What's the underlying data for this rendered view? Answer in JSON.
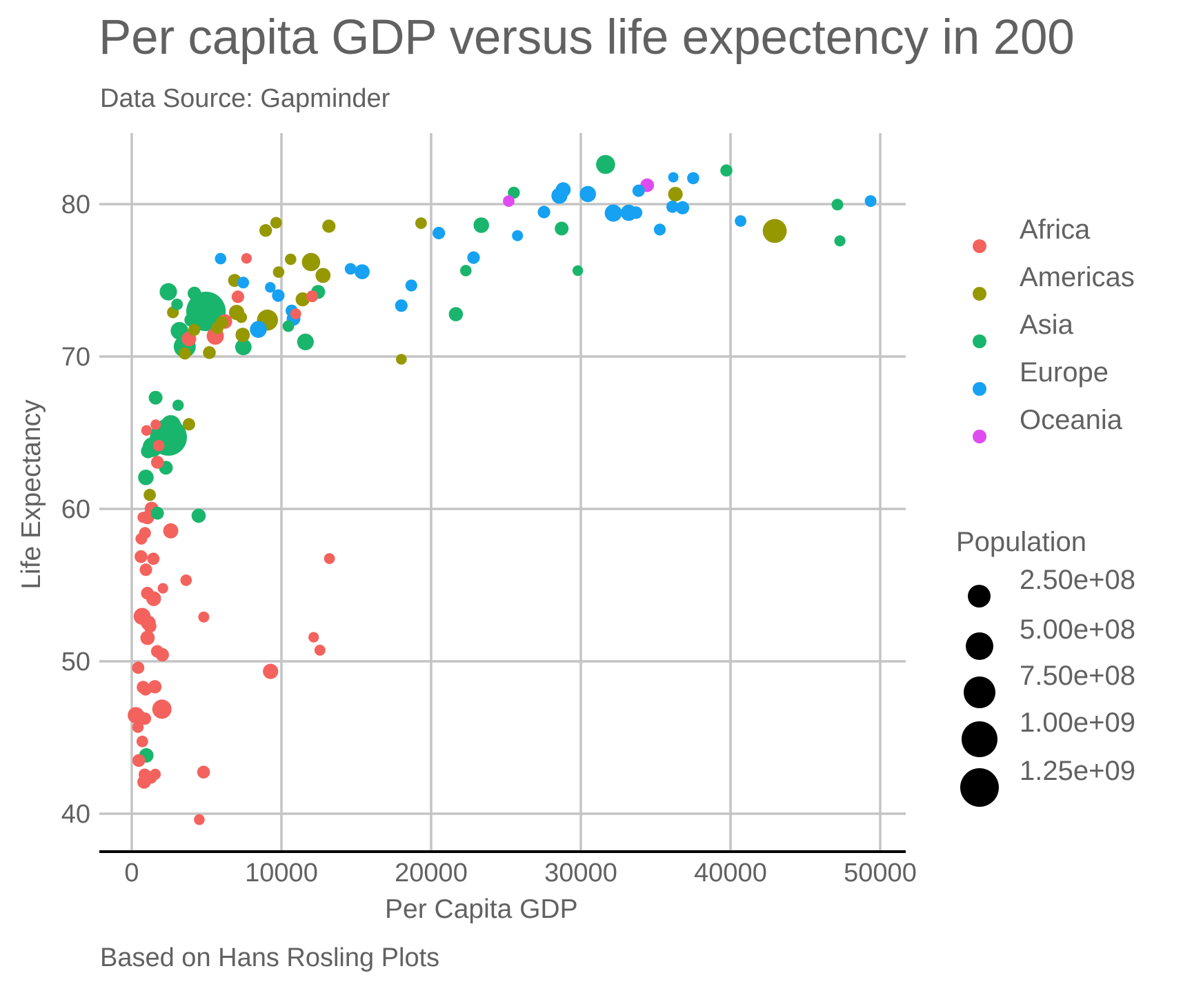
{
  "chart_data": {
    "type": "scatter",
    "title": "Per capita GDP versus life expectency in 200",
    "subtitle": "Data Source: Gapminder",
    "caption": "Based on Hans Rosling Plots",
    "xlabel": "Per Capita GDP",
    "ylabel": "Life Expectancy",
    "xlim": [
      -2300,
      52300
    ],
    "ylim": [
      37.4,
      84.7
    ],
    "x_ticks": [
      0,
      10000,
      20000,
      30000,
      40000,
      50000
    ],
    "x_tick_labels": [
      "0",
      "10000",
      "20000",
      "30000",
      "40000",
      "50000"
    ],
    "y_ticks": [
      40,
      50,
      60,
      70,
      80
    ],
    "y_tick_labels": [
      "40",
      "50",
      "60",
      "70",
      "80"
    ],
    "grid": true,
    "legend_position": "right",
    "color_legend": {
      "title": "",
      "entries": [
        {
          "label": "Africa",
          "color": "#F4625D"
        },
        {
          "label": "Americas",
          "color": "#969800"
        },
        {
          "label": "Asia",
          "color": "#1AB56C"
        },
        {
          "label": "Europe",
          "color": "#16A1F2"
        },
        {
          "label": "Oceania",
          "color": "#DE4CF0"
        }
      ]
    },
    "size_legend": {
      "title": "Population",
      "entries": [
        {
          "label": "2.50e+08",
          "value": 250000000
        },
        {
          "label": "5.00e+08",
          "value": 500000000
        },
        {
          "label": "7.50e+08",
          "value": 750000000
        },
        {
          "label": "1.00e+09",
          "value": 1000000000
        },
        {
          "label": "1.25e+09",
          "value": 1250000000
        }
      ]
    },
    "fields": [
      "gdpPercap",
      "lifeExp",
      "pop",
      "continent"
    ],
    "points": [
      [
        974.58,
        43.83,
        31889923,
        "Asia"
      ],
      [
        5937.03,
        76.42,
        3600523,
        "Europe"
      ],
      [
        6223.37,
        72.3,
        33333216,
        "Africa"
      ],
      [
        4797.23,
        42.73,
        12420476,
        "Africa"
      ],
      [
        12779.38,
        75.32,
        40301927,
        "Americas"
      ],
      [
        34435.37,
        81.24,
        20434176,
        "Oceania"
      ],
      [
        36126.49,
        79.83,
        8199783,
        "Europe"
      ],
      [
        29796.05,
        75.64,
        708573,
        "Asia"
      ],
      [
        1391.25,
        64.06,
        150448339,
        "Asia"
      ],
      [
        33692.61,
        79.44,
        10392226,
        "Europe"
      ],
      [
        1441.28,
        56.73,
        8078314,
        "Africa"
      ],
      [
        3822.14,
        65.55,
        9119152,
        "Americas"
      ],
      [
        7446.3,
        74.85,
        4552198,
        "Europe"
      ],
      [
        12569.85,
        50.73,
        1639131,
        "Africa"
      ],
      [
        9065.8,
        72.39,
        190010647,
        "Americas"
      ],
      [
        10680.79,
        73.01,
        7322858,
        "Europe"
      ],
      [
        1217.03,
        52.3,
        14326203,
        "Africa"
      ],
      [
        430.07,
        49.58,
        8390505,
        "Africa"
      ],
      [
        1713.78,
        59.72,
        14131858,
        "Asia"
      ],
      [
        2042.1,
        50.43,
        17696293,
        "Africa"
      ],
      [
        36319.24,
        80.65,
        33390141,
        "Americas"
      ],
      [
        706.02,
        44.74,
        4369038,
        "Africa"
      ],
      [
        1704.06,
        50.65,
        10238807,
        "Africa"
      ],
      [
        13171.64,
        78.55,
        16284741,
        "Americas"
      ],
      [
        4959.11,
        72.96,
        1318683096,
        "Asia"
      ],
      [
        7006.58,
        72.89,
        44227550,
        "Americas"
      ],
      [
        986.15,
        65.15,
        710960,
        "Africa"
      ],
      [
        277.55,
        46.46,
        64606759,
        "Africa"
      ],
      [
        3632.56,
        55.32,
        3800610,
        "Africa"
      ],
      [
        9645.06,
        78.78,
        4133884,
        "Americas"
      ],
      [
        1544.75,
        48.33,
        18013409,
        "Africa"
      ],
      [
        14619.22,
        75.75,
        4493312,
        "Europe"
      ],
      [
        8948.1,
        78.27,
        11416987,
        "Americas"
      ],
      [
        22833.31,
        76.49,
        10228744,
        "Europe"
      ],
      [
        35278.42,
        78.33,
        5468120,
        "Europe"
      ],
      [
        2082.48,
        54.79,
        496374,
        "Africa"
      ],
      [
        6025.37,
        72.24,
        9319622,
        "Americas"
      ],
      [
        6873.26,
        74.99,
        13755680,
        "Americas"
      ],
      [
        5581.18,
        71.34,
        80264543,
        "Africa"
      ],
      [
        5728.35,
        71.88,
        6939688,
        "Americas"
      ],
      [
        12154.09,
        51.58,
        551201,
        "Africa"
      ],
      [
        641.37,
        58.04,
        4906585,
        "Africa"
      ],
      [
        690.81,
        52.95,
        76511887,
        "Africa"
      ],
      [
        33207.08,
        79.31,
        5238460,
        "Europe"
      ],
      [
        30470.02,
        80.66,
        61083916,
        "Europe"
      ],
      [
        13206.48,
        56.74,
        1454867,
        "Africa"
      ],
      [
        752.75,
        59.45,
        1688359,
        "Africa"
      ],
      [
        32170.37,
        79.41,
        82400996,
        "Europe"
      ],
      [
        1327.61,
        60.02,
        22873338,
        "Africa"
      ],
      [
        27538.41,
        79.48,
        10706290,
        "Europe"
      ],
      [
        5186.05,
        70.26,
        12572928,
        "Americas"
      ],
      [
        942.65,
        56.01,
        9947814,
        "Africa"
      ],
      [
        579.23,
        46.39,
        1472041,
        "Africa"
      ],
      [
        1201.64,
        60.92,
        8502814,
        "Americas"
      ],
      [
        3548.33,
        70.2,
        7483763,
        "Americas"
      ],
      [
        39724.98,
        82.21,
        6980412,
        "Asia"
      ],
      [
        18008.94,
        73.34,
        9956108,
        "Europe"
      ],
      [
        36180.79,
        81.76,
        301931,
        "Europe"
      ],
      [
        2452.21,
        64.7,
        1110396331,
        "Asia"
      ],
      [
        3540.65,
        70.65,
        223547000,
        "Asia"
      ],
      [
        11605.71,
        70.96,
        69453570,
        "Asia"
      ],
      [
        4471.06,
        59.55,
        27499638,
        "Asia"
      ],
      [
        40675.0,
        78.89,
        4109086,
        "Europe"
      ],
      [
        25523.28,
        80.75,
        6426679,
        "Asia"
      ],
      [
        28569.72,
        80.55,
        58147733,
        "Europe"
      ],
      [
        7320.88,
        72.57,
        2780132,
        "Americas"
      ],
      [
        31656.07,
        82.6,
        127467972,
        "Asia"
      ],
      [
        4519.46,
        72.54,
        6053193,
        "Asia"
      ],
      [
        1463.25,
        54.11,
        35610177,
        "Africa"
      ],
      [
        1593.07,
        67.3,
        23301725,
        "Asia"
      ],
      [
        23348.14,
        78.62,
        49044790,
        "Asia"
      ],
      [
        47306.99,
        77.59,
        2505559,
        "Asia"
      ],
      [
        10461.06,
        71.99,
        3921278,
        "Asia"
      ],
      [
        1569.33,
        42.59,
        2012649,
        "Africa"
      ],
      [
        414.51,
        45.68,
        3193942,
        "Africa"
      ],
      [
        12057.5,
        73.95,
        6036914,
        "Africa"
      ],
      [
        1044.77,
        59.44,
        19167654,
        "Africa"
      ],
      [
        759.35,
        48.3,
        13327079,
        "Africa"
      ],
      [
        12451.66,
        74.24,
        24821286,
        "Asia"
      ],
      [
        1042.58,
        54.47,
        12031795,
        "Africa"
      ],
      [
        1803.15,
        64.16,
        3270065,
        "Africa"
      ],
      [
        10956.99,
        72.8,
        1250882,
        "Africa"
      ],
      [
        11977.57,
        76.2,
        108700891,
        "Americas"
      ],
      [
        3095.77,
        66.8,
        2874127,
        "Asia"
      ],
      [
        9253.9,
        74.54,
        684736,
        "Europe"
      ],
      [
        3820.18,
        71.16,
        33757175,
        "Africa"
      ],
      [
        823.69,
        42.08,
        19951656,
        "Africa"
      ],
      [
        944.0,
        62.07,
        47761980,
        "Asia"
      ],
      [
        4811.06,
        52.91,
        2055080,
        "Africa"
      ],
      [
        1091.36,
        63.79,
        28901790,
        "Asia"
      ],
      [
        36797.93,
        79.76,
        16570613,
        "Europe"
      ],
      [
        25185.01,
        80.2,
        4115771,
        "Oceania"
      ],
      [
        2749.32,
        72.9,
        5675356,
        "Americas"
      ],
      [
        619.68,
        56.87,
        12894865,
        "Africa"
      ],
      [
        2013.98,
        46.86,
        135031164,
        "Africa"
      ],
      [
        49357.19,
        80.2,
        4627926,
        "Europe"
      ],
      [
        22316.19,
        75.64,
        3204897,
        "Asia"
      ],
      [
        2605.95,
        65.48,
        169270617,
        "Asia"
      ],
      [
        9809.19,
        75.54,
        3242173,
        "Americas"
      ],
      [
        4172.84,
        71.75,
        6667147,
        "Americas"
      ],
      [
        7408.91,
        71.42,
        28674757,
        "Americas"
      ],
      [
        3190.48,
        71.69,
        91077287,
        "Asia"
      ],
      [
        15389.92,
        75.56,
        38518241,
        "Europe"
      ],
      [
        20509.65,
        78.1,
        10642836,
        "Europe"
      ],
      [
        19328.71,
        78.75,
        3942491,
        "Americas"
      ],
      [
        7670.12,
        76.44,
        798094,
        "Africa"
      ],
      [
        10808.48,
        72.48,
        22276056,
        "Europe"
      ],
      [
        881.57,
        46.24,
        8860588,
        "Africa"
      ],
      [
        1598.44,
        65.53,
        199579,
        "Africa"
      ],
      [
        21654.83,
        72.78,
        27601038,
        "Asia"
      ],
      [
        1712.47,
        63.06,
        12267493,
        "Africa"
      ],
      [
        9786.53,
        74.0,
        10150265,
        "Europe"
      ],
      [
        862.54,
        42.57,
        6144562,
        "Africa"
      ],
      [
        47143.18,
        79.97,
        4553009,
        "Asia"
      ],
      [
        18678.31,
        74.66,
        5447502,
        "Europe"
      ],
      [
        25768.26,
        77.93,
        2009245,
        "Europe"
      ],
      [
        926.14,
        48.16,
        9118773,
        "Africa"
      ],
      [
        9269.66,
        49.34,
        43997828,
        "Africa"
      ],
      [
        28821.06,
        80.94,
        40448191,
        "Europe"
      ],
      [
        3970.1,
        72.4,
        20378239,
        "Asia"
      ],
      [
        2602.39,
        58.56,
        42292929,
        "Africa"
      ],
      [
        4513.48,
        39.61,
        1133066,
        "Africa"
      ],
      [
        33859.75,
        80.88,
        9031088,
        "Europe"
      ],
      [
        37506.42,
        81.7,
        7554661,
        "Europe"
      ],
      [
        4184.55,
        74.14,
        19314747,
        "Asia"
      ],
      [
        28718.28,
        78.4,
        23174294,
        "Asia"
      ],
      [
        1107.48,
        52.52,
        38139640,
        "Africa"
      ],
      [
        7458.4,
        70.62,
        65068149,
        "Asia"
      ],
      [
        882.97,
        58.42,
        5701579,
        "Africa"
      ],
      [
        18008.51,
        69.82,
        1056608,
        "Americas"
      ],
      [
        7092.92,
        73.92,
        10276158,
        "Africa"
      ],
      [
        8458.28,
        71.78,
        71158647,
        "Europe"
      ],
      [
        1056.38,
        51.54,
        29170398,
        "Africa"
      ],
      [
        33203.26,
        79.43,
        60776238,
        "Europe"
      ],
      [
        42951.65,
        78.24,
        301139947,
        "Americas"
      ],
      [
        10611.46,
        76.38,
        3447496,
        "Americas"
      ],
      [
        11415.81,
        73.75,
        26084662,
        "Americas"
      ],
      [
        2441.58,
        74.25,
        85262356,
        "Asia"
      ],
      [
        3025.35,
        73.42,
        4018332,
        "Asia"
      ],
      [
        2280.77,
        62.7,
        22211743,
        "Asia"
      ],
      [
        1271.21,
        42.38,
        11746035,
        "Africa"
      ],
      [
        469.71,
        43.49,
        12311143,
        "Africa"
      ]
    ]
  }
}
